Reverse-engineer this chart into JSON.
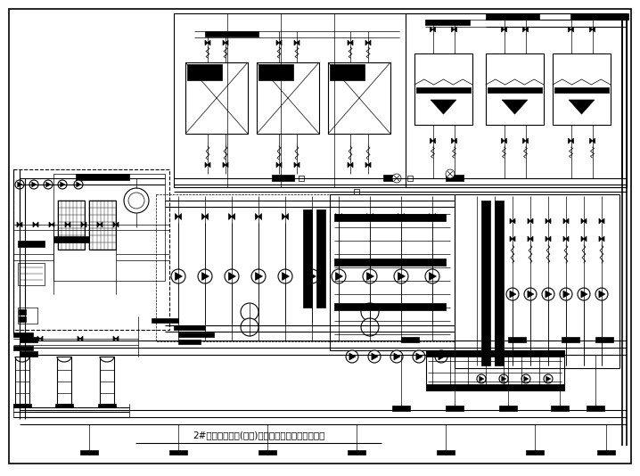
{
  "title": "2#制冷换热机房(公建)空调冷热水制备系统原理图",
  "bg_color": "#ffffff",
  "line_color": "#000000",
  "title_fontsize": 7.5,
  "fig_width": 7.18,
  "fig_height": 5.34,
  "dpi": 100
}
